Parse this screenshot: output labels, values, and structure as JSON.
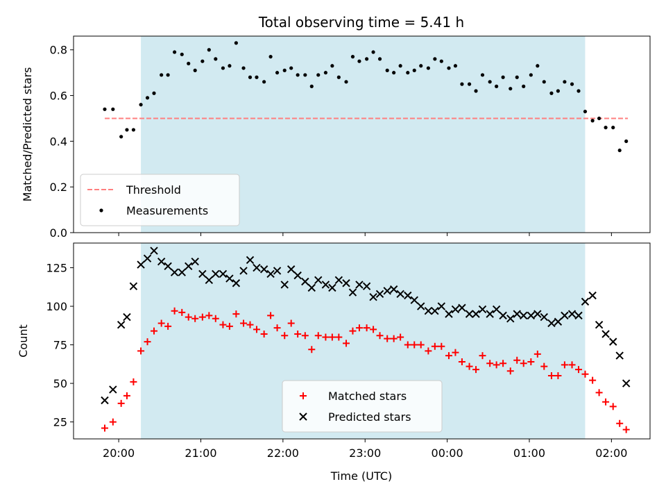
{
  "chart_data": {
    "type": "scatter",
    "title": "Total observing time = 5.41 h",
    "xlabel": "Time (UTC)",
    "x_ticks": [
      "20:00",
      "21:00",
      "22:00",
      "23:00",
      "00:00",
      "01:00",
      "02:00"
    ],
    "x_range_hours": [
      19.45,
      26.47
    ],
    "shaded_interval_hours": [
      20.27,
      25.68
    ],
    "shade_color": "#add8e6",
    "panels": [
      {
        "id": "ratio",
        "ylabel": "Matched/Predicted stars",
        "ylim": [
          0.0,
          0.86
        ],
        "y_ticks": [
          "0.0",
          "0.2",
          "0.4",
          "0.6",
          "0.8"
        ],
        "threshold": {
          "name": "Threshold",
          "value": 0.5,
          "x_range": [
            19.83,
            26.2
          ],
          "color": "#ff7f7f"
        },
        "legend_position": "lower-left",
        "series": [
          {
            "name": "Measurements",
            "marker": "dot",
            "color": "#000000",
            "x": [
              19.83,
              19.93,
              20.03,
              20.1,
              20.18,
              20.27,
              20.35,
              20.43,
              20.52,
              20.6,
              20.68,
              20.77,
              20.85,
              20.93,
              21.02,
              21.1,
              21.18,
              21.27,
              21.35,
              21.43,
              21.52,
              21.6,
              21.68,
              21.77,
              21.85,
              21.93,
              22.02,
              22.1,
              22.18,
              22.27,
              22.35,
              22.43,
              22.52,
              22.6,
              22.68,
              22.77,
              22.85,
              22.93,
              23.02,
              23.1,
              23.18,
              23.27,
              23.35,
              23.43,
              23.52,
              23.6,
              23.68,
              23.77,
              23.85,
              23.93,
              24.02,
              24.1,
              24.18,
              24.27,
              24.35,
              24.43,
              24.52,
              24.6,
              24.68,
              24.77,
              24.85,
              24.93,
              25.02,
              25.1,
              25.18,
              25.27,
              25.35,
              25.43,
              25.52,
              25.6,
              25.68,
              25.77,
              25.85,
              25.93,
              26.02,
              26.1,
              26.18
            ],
            "y": [
              0.54,
              0.54,
              0.42,
              0.45,
              0.45,
              0.56,
              0.59,
              0.61,
              0.69,
              0.69,
              0.79,
              0.78,
              0.74,
              0.71,
              0.75,
              0.8,
              0.76,
              0.72,
              0.73,
              0.83,
              0.72,
              0.68,
              0.68,
              0.66,
              0.77,
              0.7,
              0.71,
              0.72,
              0.69,
              0.69,
              0.64,
              0.69,
              0.7,
              0.73,
              0.68,
              0.66,
              0.77,
              0.75,
              0.76,
              0.79,
              0.76,
              0.71,
              0.7,
              0.73,
              0.7,
              0.71,
              0.73,
              0.72,
              0.76,
              0.75,
              0.72,
              0.73,
              0.65,
              0.65,
              0.62,
              0.69,
              0.66,
              0.64,
              0.68,
              0.63,
              0.68,
              0.64,
              0.69,
              0.73,
              0.66,
              0.61,
              0.62,
              0.66,
              0.65,
              0.62,
              0.53,
              0.49,
              0.5,
              0.46,
              0.46,
              0.36,
              0.4
            ]
          }
        ]
      },
      {
        "id": "counts",
        "ylabel": "Count",
        "ylim": [
          14,
          141
        ],
        "y_ticks": [
          "25",
          "50",
          "75",
          "100",
          "125"
        ],
        "legend_position": "lower-center",
        "series": [
          {
            "name": "Matched stars",
            "marker": "plus",
            "color": "#ff0000",
            "x": [
              19.83,
              19.93,
              20.03,
              20.1,
              20.18,
              20.27,
              20.35,
              20.43,
              20.52,
              20.6,
              20.68,
              20.77,
              20.85,
              20.93,
              21.02,
              21.1,
              21.18,
              21.27,
              21.35,
              21.43,
              21.52,
              21.6,
              21.68,
              21.77,
              21.85,
              21.93,
              22.02,
              22.1,
              22.18,
              22.27,
              22.35,
              22.43,
              22.52,
              22.6,
              22.68,
              22.77,
              22.85,
              22.93,
              23.02,
              23.1,
              23.18,
              23.27,
              23.35,
              23.43,
              23.52,
              23.6,
              23.68,
              23.77,
              23.85,
              23.93,
              24.02,
              24.1,
              24.18,
              24.27,
              24.35,
              24.43,
              24.52,
              24.6,
              24.68,
              24.77,
              24.85,
              24.93,
              25.02,
              25.1,
              25.18,
              25.27,
              25.35,
              25.43,
              25.52,
              25.6,
              25.68,
              25.77,
              25.85,
              25.93,
              26.02,
              26.1,
              26.18
            ],
            "y": [
              21,
              25,
              37,
              42,
              51,
              71,
              77,
              84,
              89,
              87,
              97,
              96,
              93,
              92,
              93,
              94,
              92,
              88,
              87,
              95,
              89,
              88,
              85,
              82,
              94,
              86,
              81,
              89,
              82,
              81,
              72,
              81,
              80,
              80,
              80,
              76,
              84,
              86,
              86,
              85,
              81,
              79,
              79,
              80,
              75,
              75,
              75,
              71,
              74,
              74,
              68,
              70,
              64,
              61,
              59,
              68,
              63,
              62,
              63,
              58,
              65,
              63,
              64,
              69,
              61,
              55,
              55,
              62,
              62,
              59,
              56,
              52,
              44,
              38,
              35,
              24,
              20
            ]
          },
          {
            "name": "Predicted stars",
            "marker": "x",
            "color": "#000000",
            "x": [
              19.83,
              19.93,
              20.03,
              20.1,
              20.18,
              20.27,
              20.35,
              20.43,
              20.52,
              20.6,
              20.68,
              20.77,
              20.85,
              20.93,
              21.02,
              21.1,
              21.18,
              21.27,
              21.35,
              21.43,
              21.52,
              21.6,
              21.68,
              21.77,
              21.85,
              21.93,
              22.02,
              22.1,
              22.18,
              22.27,
              22.35,
              22.43,
              22.52,
              22.6,
              22.68,
              22.77,
              22.85,
              22.93,
              23.02,
              23.1,
              23.18,
              23.27,
              23.35,
              23.43,
              23.52,
              23.6,
              23.68,
              23.77,
              23.85,
              23.93,
              24.02,
              24.1,
              24.18,
              24.27,
              24.35,
              24.43,
              24.52,
              24.6,
              24.68,
              24.77,
              24.85,
              24.93,
              25.02,
              25.1,
              25.18,
              25.27,
              25.35,
              25.43,
              25.52,
              25.6,
              25.68,
              25.77,
              25.85,
              25.93,
              26.02,
              26.1,
              26.18
            ],
            "y": [
              39,
              46,
              88,
              93,
              113,
              127,
              131,
              136,
              129,
              126,
              122,
              122,
              126,
              129,
              121,
              117,
              121,
              121,
              118,
              115,
              123,
              130,
              125,
              124,
              121,
              123,
              114,
              124,
              120,
              116,
              112,
              117,
              114,
              112,
              117,
              115,
              109,
              114,
              113,
              106,
              108,
              110,
              111,
              108,
              107,
              104,
              100,
              97,
              97,
              100,
              95,
              98,
              99,
              95,
              95,
              98,
              95,
              98,
              94,
              92,
              95,
              94,
              94,
              95,
              93,
              89,
              90,
              94,
              95,
              94,
              103,
              107,
              88,
              82,
              77,
              68,
              50
            ]
          }
        ]
      }
    ]
  }
}
